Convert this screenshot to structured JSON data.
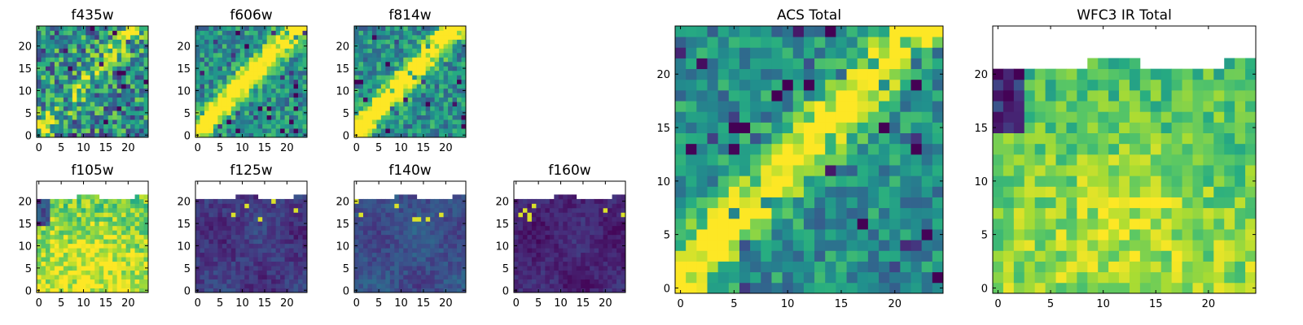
{
  "figure": {
    "background": "#ffffff",
    "colormap": "viridis",
    "missing_color": "#ffffff"
  },
  "chart_data": [
    {
      "id": "f435w",
      "type": "heatmap",
      "title": "f435w",
      "grid_size": 25,
      "xticks": [
        0,
        5,
        10,
        15,
        20
      ],
      "yticks": [
        0,
        5,
        10,
        15,
        20
      ],
      "xlim": [
        0,
        25
      ],
      "ylim": [
        0,
        25
      ],
      "pattern": "diagonal-streak",
      "streak_strength": 0.25,
      "noise": 0.7,
      "clip_top": null
    },
    {
      "id": "f606w",
      "type": "heatmap",
      "title": "f606w",
      "grid_size": 25,
      "xticks": [
        0,
        5,
        10,
        15,
        20
      ],
      "yticks": [
        0,
        5,
        10,
        15,
        20
      ],
      "xlim": [
        0,
        25
      ],
      "ylim": [
        0,
        25
      ],
      "pattern": "diagonal-streak",
      "streak_strength": 0.7,
      "noise": 0.45,
      "clip_top": null
    },
    {
      "id": "f814w",
      "type": "heatmap",
      "title": "f814w",
      "grid_size": 25,
      "xticks": [
        0,
        5,
        10,
        15,
        20
      ],
      "yticks": [
        0,
        5,
        10,
        15,
        20
      ],
      "xlim": [
        0,
        25
      ],
      "ylim": [
        0,
        25
      ],
      "pattern": "diagonal-streak",
      "streak_strength": 0.75,
      "noise": 0.45,
      "clip_top": null
    },
    {
      "id": "f105w",
      "type": "heatmap",
      "title": "f105w",
      "grid_size": 25,
      "xticks": [
        0,
        5,
        10,
        15,
        20
      ],
      "yticks": [
        0,
        5,
        10,
        15,
        20
      ],
      "xlim": [
        0,
        25
      ],
      "ylim": [
        0,
        25
      ],
      "pattern": "smooth-bright",
      "level": 0.78,
      "noise": 0.35,
      "clip_top": 20
    },
    {
      "id": "f125w",
      "type": "heatmap",
      "title": "f125w",
      "grid_size": 25,
      "xticks": [
        0,
        5,
        10,
        15,
        20
      ],
      "yticks": [
        0,
        5,
        10,
        15,
        20
      ],
      "xlim": [
        0,
        25
      ],
      "ylim": [
        0,
        25
      ],
      "pattern": "smooth-dark",
      "level": 0.17,
      "noise": 0.15,
      "clip_top": 20
    },
    {
      "id": "f140w",
      "type": "heatmap",
      "title": "f140w",
      "grid_size": 25,
      "xticks": [
        0,
        5,
        10,
        15,
        20
      ],
      "yticks": [
        0,
        5,
        10,
        15,
        20
      ],
      "xlim": [
        0,
        25
      ],
      "ylim": [
        0,
        25
      ],
      "pattern": "smooth-dark",
      "level": 0.25,
      "noise": 0.15,
      "clip_top": 20
    },
    {
      "id": "f160w",
      "type": "heatmap",
      "title": "f160w",
      "grid_size": 25,
      "xticks": [
        0,
        5,
        10,
        15,
        20
      ],
      "yticks": [
        0,
        5,
        10,
        15,
        20
      ],
      "xlim": [
        0,
        25
      ],
      "ylim": [
        0,
        25
      ],
      "pattern": "smooth-dark",
      "level": 0.11,
      "noise": 0.12,
      "clip_top": 20
    },
    {
      "id": "acs_total",
      "type": "heatmap",
      "title": "ACS Total",
      "grid_size": 25,
      "xticks": [
        0,
        5,
        10,
        15,
        20
      ],
      "yticks": [
        0,
        5,
        10,
        15,
        20
      ],
      "xlim": [
        0,
        25
      ],
      "ylim": [
        0,
        25
      ],
      "pattern": "diagonal-streak",
      "streak_strength": 0.6,
      "noise": 0.4,
      "clip_top": null
    },
    {
      "id": "wfc3_ir_total",
      "type": "heatmap",
      "title": "WFC3 IR Total",
      "grid_size": 25,
      "xticks": [
        0,
        5,
        10,
        15,
        20
      ],
      "yticks": [
        0,
        5,
        10,
        15,
        20
      ],
      "xlim": [
        0,
        25
      ],
      "ylim": [
        0,
        25
      ],
      "pattern": "smooth-bright",
      "level": 0.7,
      "noise": 0.3,
      "clip_top": 20
    }
  ]
}
